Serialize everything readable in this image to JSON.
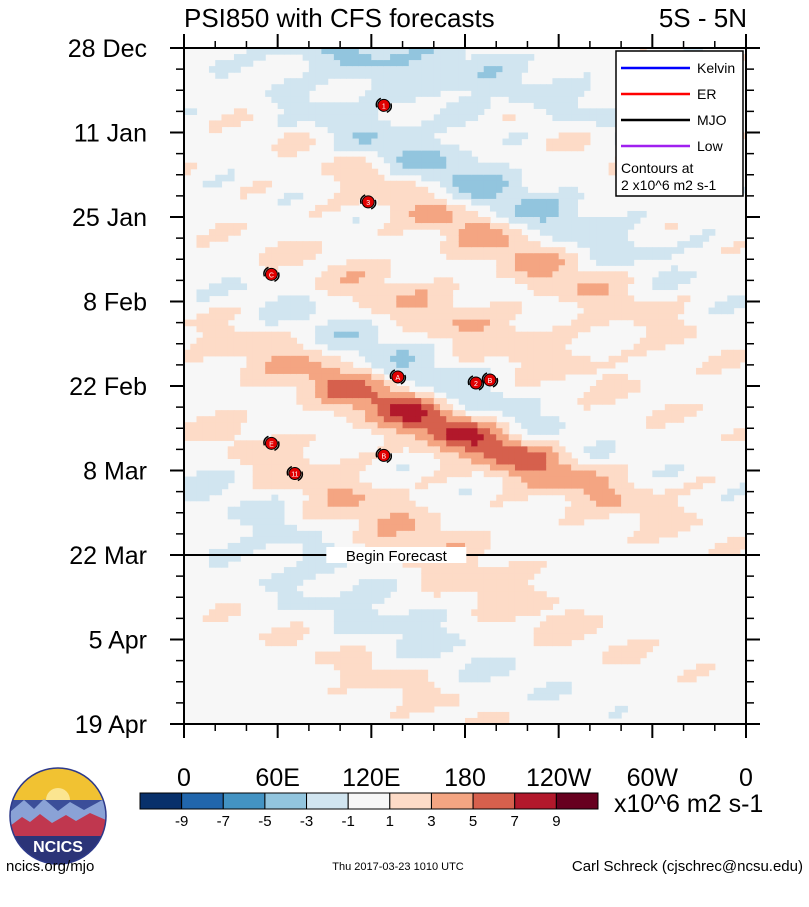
{
  "chart_data": {
    "type": "heatmap",
    "title": "PSI850 with CFS forecasts",
    "region": "5S - 5N",
    "xlabel": "",
    "ylabel": "",
    "x_ticks": [
      "0",
      "60E",
      "120E",
      "180",
      "120W",
      "60W",
      "0"
    ],
    "x_range_deg": [
      0,
      360
    ],
    "y_ticks": [
      "28 Dec",
      "11 Jan",
      "25 Jan",
      "8 Feb",
      "22 Feb",
      "8 Mar",
      "22 Mar",
      "5 Apr",
      "19 Apr"
    ],
    "y_tick_days": [
      0,
      14,
      28,
      42,
      56,
      70,
      84,
      98,
      112
    ],
    "y_range_days": [
      0,
      112
    ],
    "forecast_start": {
      "day": 84,
      "label": "Begin Forecast"
    },
    "legend": [
      {
        "name": "Kelvin",
        "color": "#0000ff"
      },
      {
        "name": "ER",
        "color": "#ff0000"
      },
      {
        "name": "MJO",
        "color": "#000000"
      },
      {
        "name": "Low",
        "color": "#a020f0"
      }
    ],
    "contour_note": [
      "Contours at",
      "2 x10^6 m2 s-1"
    ],
    "colorbar": {
      "labels": [
        "-9",
        "-7",
        "-5",
        "-3",
        "-1",
        "1",
        "3",
        "5",
        "7",
        "9"
      ],
      "colors": [
        "#08306b",
        "#2166ac",
        "#4393c3",
        "#92c5de",
        "#d1e5f0",
        "#f7f7f7",
        "#fddbc7",
        "#f4a582",
        "#d6604d",
        "#b2182b",
        "#67001f"
      ],
      "units": "x10^6 m2 s-1"
    },
    "anomaly_bands": [
      {
        "lon": 120,
        "day": 2,
        "dlon_dday": 10,
        "amp": -5,
        "width": 3
      },
      {
        "lon": 200,
        "day": 4,
        "dlon_dday": 8,
        "amp": -2,
        "width": 3
      },
      {
        "lon": 200,
        "day": 10,
        "dlon_dday": 10,
        "amp": 3,
        "width": 2.5
      },
      {
        "lon": 180,
        "day": 22,
        "dlon_dday": 9,
        "amp": -4,
        "width": 3
      },
      {
        "lon": 200,
        "day": 32,
        "dlon_dday": 8,
        "amp": 4,
        "width": 3
      },
      {
        "lon": 170,
        "day": 45,
        "dlon_dday": 10,
        "amp": 3,
        "width": 3
      },
      {
        "lon": 160,
        "day": 55,
        "dlon_dday": 8,
        "amp": -3,
        "width": 3
      },
      {
        "lon": 140,
        "day": 60,
        "dlon_dday": 10,
        "amp": 4,
        "width": 3
      },
      {
        "lon": 200,
        "day": 66,
        "dlon_dday": 10,
        "amp": 4,
        "width": 3
      },
      {
        "lon": 110,
        "day": 75,
        "dlon_dday": 8,
        "amp": 3,
        "width": 3
      },
      {
        "lon": 80,
        "day": 82,
        "dlon_dday": 7,
        "amp": -2,
        "width": 3
      },
      {
        "lon": 200,
        "day": 92,
        "dlon_dday": 10,
        "amp": 2,
        "width": 3
      },
      {
        "lon": 120,
        "day": 96,
        "dlon_dday": 10,
        "amp": -2,
        "width": 3
      },
      {
        "lon": 130,
        "day": 104,
        "dlon_dday": 10,
        "amp": 2,
        "width": 3
      }
    ],
    "storm_markers": [
      {
        "lon": 128,
        "day": 9.5,
        "label": "1"
      },
      {
        "lon": 118,
        "day": 25.5,
        "label": "3"
      },
      {
        "lon": 56,
        "day": 37.5,
        "label": "C"
      },
      {
        "lon": 137,
        "day": 54.5,
        "label": "A"
      },
      {
        "lon": 187,
        "day": 55.5,
        "label": "2"
      },
      {
        "lon": 196,
        "day": 55,
        "label": "B"
      },
      {
        "lon": 56,
        "day": 65.5,
        "label": "E"
      },
      {
        "lon": 128,
        "day": 67.5,
        "label": "B"
      },
      {
        "lon": 71,
        "day": 70.5,
        "label": "11"
      }
    ]
  },
  "branding": {
    "logo_text": "NCICS",
    "site": "ncics.org/mjo",
    "timestamp": "Thu 2017-03-23 1010 UTC",
    "author": "Carl Schreck (cjschrec@ncsu.edu)"
  }
}
